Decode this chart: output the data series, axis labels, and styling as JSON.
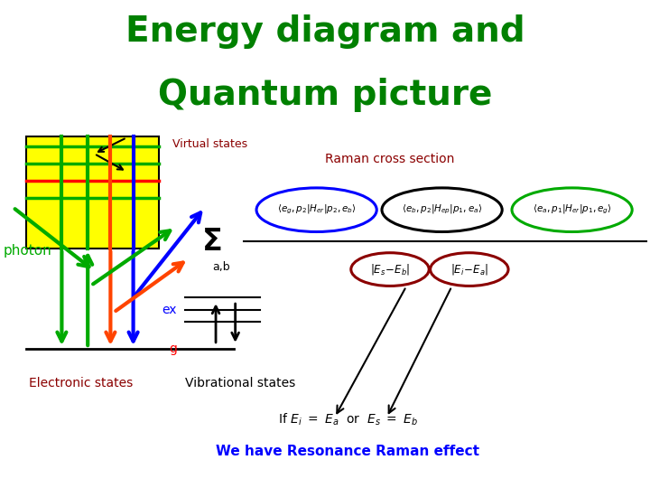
{
  "title_line1": "Energy diagram and",
  "title_line2": "Quantum picture",
  "title_color": "#008000",
  "title_fontsize": 28,
  "bg_color": "#ffffff",
  "virtual_states_label": "Virtual states",
  "virtual_states_color": "#8B0000",
  "raman_label": "Raman cross section",
  "raman_color": "#8B0000",
  "photon_label": "photon",
  "photon_color": "#00aa00",
  "electronic_states_label": "Electronic states",
  "electronic_states_color": "#8B0000",
  "vibrational_states_label": "Vibrational states",
  "ex_label": "ex",
  "ex_color": "#0000ff",
  "g_label": "g",
  "g_color": "#ff0000",
  "resonance_color": "#0000ff"
}
